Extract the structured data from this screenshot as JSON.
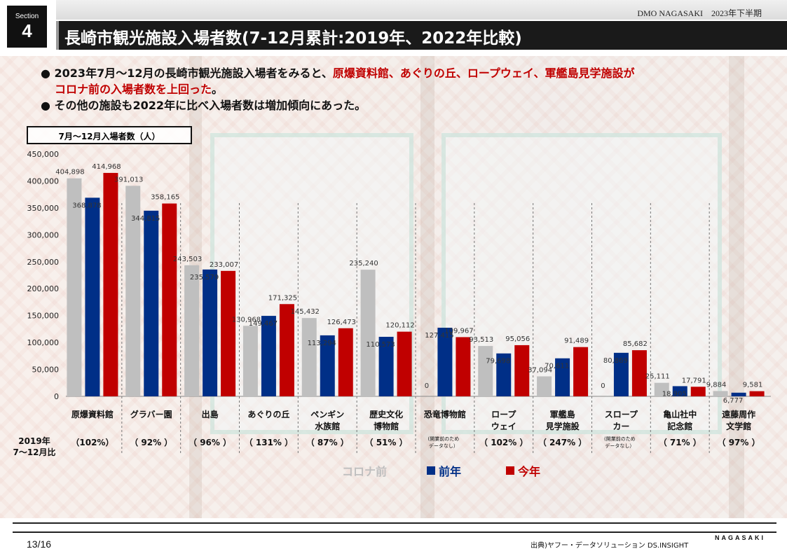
{
  "section": {
    "label": "Section",
    "number": "4"
  },
  "header_right": "DMO NAGASAKI　2023年下半期",
  "title": "長崎市観光施設入場者数(7-12月累計:2019年、2022年比較)",
  "bullets": [
    {
      "black_pre": "● 2023年7月～12月の長崎市観光施設入場者をみると、",
      "red": "原爆資料館、あぐりの丘、ロープウェイ、軍艦島見学施設が",
      "red2": "コロナ前の入場者数を上回った",
      "black_post": "。"
    },
    {
      "text": "● その他の施設も2022年に比べ入場者数は増加傾向にあった。"
    }
  ],
  "axis_title": "7月～12月入場者数（人）",
  "row_label": "2019年\n7～12月比",
  "legend": {
    "s1": "コロナ前",
    "s2": "前年",
    "s3": "今年"
  },
  "colors": {
    "s1": "#bfbfbf",
    "s2": "#002f87",
    "s3": "#c00000"
  },
  "page": "13/16",
  "source": "出典)ヤフー・データソリューション DS.INSIGHT",
  "logo": "NAGASAKI",
  "chart_data": {
    "type": "bar",
    "ylim": [
      0,
      450000
    ],
    "yticks": [
      0,
      50000,
      100000,
      150000,
      200000,
      250000,
      300000,
      350000,
      400000,
      450000
    ],
    "ytick_labels": [
      "0",
      "50,000",
      "100,000",
      "150,000",
      "200,000",
      "250,000",
      "300,000",
      "350,000",
      "400,000",
      "450,000"
    ],
    "categories": [
      "原爆資料館",
      "グラバー園",
      "出島",
      "あぐりの丘",
      "ペンギン\n水族館",
      "歴史文化\n博物館",
      "恐竜博物館",
      "ロープ\nウェイ",
      "軍艦島\n見学施設",
      "スロープ\nカー",
      "亀山社中\n記念館",
      "遠藤周作\n文学館"
    ],
    "ratios": [
      "（102%）",
      "（ 92% ）",
      "（ 96% ）",
      "（ 131% ）",
      "（ 87% ）",
      "（ 51% ）",
      "(開業前のため\nデータなし）",
      "（ 102% ）",
      "（ 247% ）",
      "(開業前のため\nデータなし）",
      "（ 71% ）",
      "（ 97% ）"
    ],
    "series": [
      {
        "name": "コロナ前",
        "values": [
          404898,
          391013,
          243503,
          130968,
          145432,
          235240,
          0,
          93513,
          37094,
          0,
          25111,
          9884
        ],
        "labels": [
          "404,898",
          "391,013",
          "243,503",
          "130,968",
          "145,432",
          "235,240",
          "0",
          "93,513",
          "37,094",
          "0",
          "25,111",
          "9,884"
        ]
      },
      {
        "name": "前年",
        "values": [
          368878,
          344815,
          235579,
          149467,
          113294,
          110573,
          127415,
          79698,
          70611,
          80869,
          18905,
          6777
        ],
        "labels": [
          "368,878",
          "344,815",
          "235,579",
          "149,467",
          "113,294",
          "110,573",
          "127,415",
          "79,698",
          "70,611",
          "80,869",
          "18,905",
          "6,777"
        ]
      },
      {
        "name": "今年",
        "values": [
          414968,
          358165,
          233007,
          171325,
          126473,
          120112,
          109967,
          95056,
          91489,
          85682,
          17791,
          9581
        ],
        "labels": [
          "414,968",
          "358,165",
          "233,007",
          "171,325",
          "126,473",
          "120,112",
          "109,967",
          "95,056",
          "91,489",
          "85,682",
          "17,791",
          "9,581"
        ]
      }
    ]
  }
}
